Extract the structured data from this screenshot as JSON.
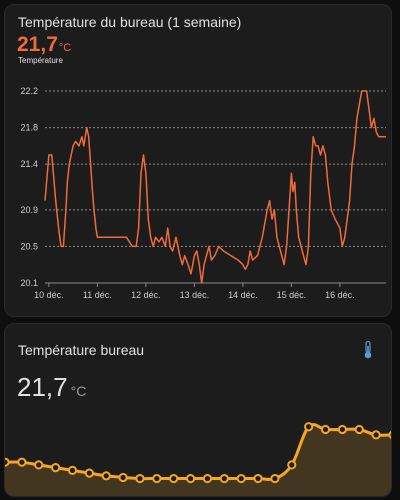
{
  "card1": {
    "title": "Température du bureau (1 semaine)",
    "value": "21,7",
    "unit": "°C",
    "legend": "Température"
  },
  "card2": {
    "title": "Température bureau",
    "value": "21,7",
    "unit": "°C",
    "icon": "thermometer-icon"
  },
  "colors": {
    "line": "#ef6c3a",
    "sparkline": "#f5a623",
    "fill": "#4a3b22"
  },
  "chart_data": [
    {
      "type": "line",
      "xlabel": "",
      "ylabel": "",
      "ylim": [
        20.1,
        22.2
      ],
      "y_ticks": [
        "22.2",
        "21.8",
        "21.4",
        "20.9",
        "20.5",
        "20.1"
      ],
      "y_tick_values": [
        22.2,
        21.8,
        21.4,
        20.9,
        20.5,
        20.1
      ],
      "x_ticks": [
        "10 déc.",
        "11 déc.",
        "12 déc.",
        "13 déc.",
        "14 déc.",
        "15 déc.",
        "16 déc."
      ],
      "xlim": [
        9.92,
        16.95
      ],
      "grid": "horizontal dashed",
      "series": [
        {
          "x": [
            9.92,
            10.0,
            10.06,
            10.14,
            10.2,
            10.25,
            10.3,
            10.35,
            10.38,
            10.42,
            10.5,
            10.55,
            10.62,
            10.68,
            10.72,
            10.78,
            10.82,
            10.86,
            10.9,
            10.93,
            10.97,
            11.0,
            11.05,
            11.12,
            11.18,
            11.24,
            11.3,
            11.45,
            11.6,
            11.72,
            11.8,
            11.85,
            11.9,
            11.95,
            12.0,
            12.05,
            12.1,
            12.15,
            12.2,
            12.27,
            12.33,
            12.4,
            12.45,
            12.5,
            12.55,
            12.62,
            12.7,
            12.75,
            12.8,
            12.87,
            12.93,
            13.0,
            13.05,
            13.1,
            13.15,
            13.2,
            13.25,
            13.3,
            13.35,
            13.42,
            13.5,
            13.6,
            13.75,
            13.9,
            14.0,
            14.05,
            14.1,
            14.15,
            14.2,
            14.3,
            14.4,
            14.5,
            14.55,
            14.6,
            14.65,
            14.7,
            14.75,
            14.8,
            14.85,
            14.9,
            14.95,
            15.0,
            15.03,
            15.07,
            15.1,
            15.15,
            15.2,
            15.25,
            15.3,
            15.35,
            15.4,
            15.45,
            15.5,
            15.55,
            15.6,
            15.65,
            15.7,
            15.75,
            15.82,
            15.9,
            16.0,
            16.05,
            16.1,
            16.15,
            16.2,
            16.25,
            16.3,
            16.35,
            16.45,
            16.55,
            16.6,
            16.65,
            16.7,
            16.75,
            16.8,
            16.85,
            16.9,
            16.95
          ],
          "y": [
            21.0,
            21.5,
            21.5,
            21.0,
            20.7,
            20.5,
            20.5,
            20.9,
            21.2,
            21.4,
            21.6,
            21.65,
            21.6,
            21.7,
            21.6,
            21.8,
            21.7,
            21.4,
            21.1,
            20.9,
            20.7,
            20.6,
            20.6,
            20.6,
            20.6,
            20.6,
            20.6,
            20.6,
            20.6,
            20.5,
            20.5,
            20.7,
            21.3,
            21.5,
            21.3,
            20.8,
            20.6,
            20.5,
            20.6,
            20.55,
            20.6,
            20.5,
            20.7,
            20.5,
            20.45,
            20.6,
            20.4,
            20.3,
            20.4,
            20.3,
            20.2,
            20.4,
            20.45,
            20.3,
            20.1,
            20.3,
            20.4,
            20.5,
            20.35,
            20.4,
            20.5,
            20.45,
            20.4,
            20.35,
            20.3,
            20.25,
            20.3,
            20.45,
            20.35,
            20.4,
            20.6,
            20.9,
            21.0,
            20.8,
            20.9,
            20.6,
            20.5,
            20.4,
            20.3,
            20.5,
            20.9,
            21.3,
            21.1,
            21.2,
            20.9,
            20.6,
            20.5,
            20.4,
            20.3,
            20.5,
            21.3,
            21.7,
            21.6,
            21.6,
            21.5,
            21.6,
            21.5,
            21.2,
            20.9,
            20.8,
            20.7,
            20.5,
            20.6,
            20.8,
            21.0,
            21.4,
            21.6,
            21.9,
            22.2,
            22.2,
            22.0,
            21.8,
            21.9,
            21.75,
            21.7,
            21.7,
            21.7,
            21.7
          ]
        }
      ]
    },
    {
      "type": "area",
      "xlabel": "",
      "ylabel": "",
      "x": [
        0,
        1,
        2,
        3,
        4,
        5,
        6,
        7,
        8,
        9,
        10,
        11,
        12,
        13,
        14,
        15,
        16,
        17,
        18,
        19,
        20,
        21,
        22,
        23
      ],
      "values": [
        20.9,
        20.9,
        20.85,
        20.8,
        20.75,
        20.7,
        20.65,
        20.62,
        20.6,
        20.6,
        20.6,
        20.6,
        20.6,
        20.6,
        20.6,
        20.6,
        20.6,
        20.85,
        21.55,
        21.5,
        21.5,
        21.5,
        21.4,
        21.4
      ]
    }
  ]
}
